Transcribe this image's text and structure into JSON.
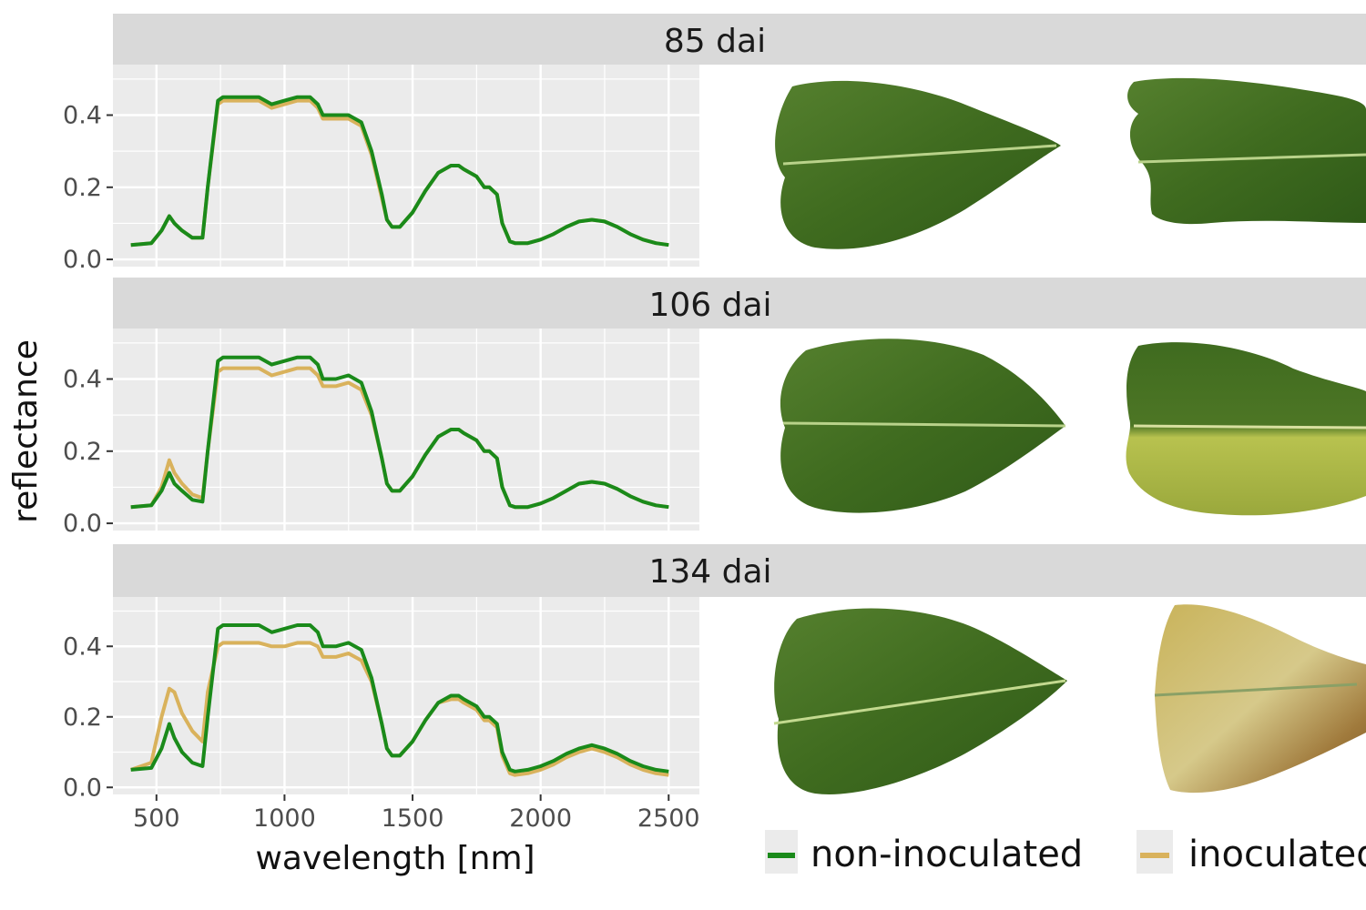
{
  "ylabel": "reflectance",
  "xlabel": "wavelength [nm]",
  "colors": {
    "non_inoculated": "#1a8a1a",
    "inoculated": "#d9b25c",
    "panel_bg": "#ebebeb",
    "strip_bg": "#d9d9d9",
    "grid": "#ffffff"
  },
  "legend": [
    {
      "label": "non-inoculated",
      "color": "#1a8a1a"
    },
    {
      "label": "inoculated",
      "color": "#d9b25c"
    }
  ],
  "panels": [
    {
      "strip": "85 dai",
      "leaves": [
        "healthy green leaf",
        "slightly wilted green leaf"
      ]
    },
    {
      "strip": "106 dai",
      "leaves": [
        "healthy green leaf",
        "leaf with yellowing lower half"
      ]
    },
    {
      "strip": "134 dai",
      "leaves": [
        "healthy green leaf",
        "yellow-brown necrotic leaf"
      ]
    }
  ],
  "chart_data": [
    {
      "type": "line",
      "title": "85 dai",
      "xlabel": "wavelength [nm]",
      "ylabel": "reflectance",
      "xlim": [
        330,
        2620
      ],
      "ylim": [
        -0.02,
        0.54
      ],
      "xticks": [
        "500",
        "1000",
        "1500",
        "2000",
        "2500"
      ],
      "yticks": [
        "0.0",
        "0.2",
        "0.4"
      ],
      "grid": true,
      "legend_position": "bottom",
      "x": [
        400,
        480,
        520,
        550,
        570,
        600,
        640,
        680,
        700,
        740,
        760,
        800,
        900,
        950,
        1000,
        1050,
        1100,
        1130,
        1150,
        1200,
        1250,
        1300,
        1340,
        1380,
        1400,
        1420,
        1450,
        1500,
        1550,
        1600,
        1650,
        1680,
        1700,
        1750,
        1780,
        1800,
        1830,
        1850,
        1880,
        1900,
        1950,
        2000,
        2050,
        2100,
        2150,
        2200,
        2250,
        2300,
        2350,
        2400,
        2450,
        2500
      ],
      "series": [
        {
          "name": "non-inoculated",
          "values": [
            0.04,
            0.045,
            0.08,
            0.12,
            0.1,
            0.08,
            0.06,
            0.06,
            0.2,
            0.44,
            0.45,
            0.45,
            0.45,
            0.43,
            0.44,
            0.45,
            0.45,
            0.43,
            0.4,
            0.4,
            0.4,
            0.38,
            0.3,
            0.18,
            0.11,
            0.09,
            0.09,
            0.13,
            0.19,
            0.24,
            0.26,
            0.26,
            0.25,
            0.23,
            0.2,
            0.2,
            0.18,
            0.1,
            0.05,
            0.045,
            0.045,
            0.055,
            0.07,
            0.09,
            0.105,
            0.11,
            0.105,
            0.09,
            0.07,
            0.055,
            0.045,
            0.04
          ]
        },
        {
          "name": "inoculated",
          "values": [
            0.04,
            0.045,
            0.08,
            0.12,
            0.1,
            0.08,
            0.06,
            0.06,
            0.2,
            0.43,
            0.44,
            0.44,
            0.44,
            0.42,
            0.43,
            0.44,
            0.44,
            0.42,
            0.39,
            0.39,
            0.39,
            0.37,
            0.29,
            0.17,
            0.11,
            0.09,
            0.09,
            0.13,
            0.19,
            0.24,
            0.26,
            0.26,
            0.25,
            0.23,
            0.2,
            0.2,
            0.18,
            0.1,
            0.05,
            0.045,
            0.045,
            0.055,
            0.07,
            0.09,
            0.105,
            0.11,
            0.105,
            0.09,
            0.07,
            0.055,
            0.045,
            0.04
          ]
        }
      ]
    },
    {
      "type": "line",
      "title": "106 dai",
      "xlabel": "wavelength [nm]",
      "ylabel": "reflectance",
      "xlim": [
        330,
        2620
      ],
      "ylim": [
        -0.02,
        0.54
      ],
      "xticks": [
        "500",
        "1000",
        "1500",
        "2000",
        "2500"
      ],
      "yticks": [
        "0.0",
        "0.2",
        "0.4"
      ],
      "grid": true,
      "legend_position": "bottom",
      "x": [
        400,
        480,
        520,
        550,
        570,
        600,
        640,
        680,
        700,
        740,
        760,
        800,
        900,
        950,
        1000,
        1050,
        1100,
        1130,
        1150,
        1200,
        1250,
        1300,
        1340,
        1380,
        1400,
        1420,
        1450,
        1500,
        1550,
        1600,
        1650,
        1680,
        1700,
        1750,
        1780,
        1800,
        1830,
        1850,
        1880,
        1900,
        1950,
        2000,
        2050,
        2100,
        2150,
        2200,
        2250,
        2300,
        2350,
        2400,
        2450,
        2500
      ],
      "series": [
        {
          "name": "non-inoculated",
          "values": [
            0.045,
            0.05,
            0.09,
            0.14,
            0.11,
            0.09,
            0.065,
            0.06,
            0.2,
            0.45,
            0.46,
            0.46,
            0.46,
            0.44,
            0.45,
            0.46,
            0.46,
            0.44,
            0.4,
            0.4,
            0.41,
            0.39,
            0.31,
            0.18,
            0.11,
            0.09,
            0.09,
            0.13,
            0.19,
            0.24,
            0.26,
            0.26,
            0.25,
            0.23,
            0.2,
            0.2,
            0.18,
            0.1,
            0.05,
            0.045,
            0.045,
            0.055,
            0.07,
            0.09,
            0.11,
            0.115,
            0.11,
            0.095,
            0.075,
            0.06,
            0.05,
            0.045
          ]
        },
        {
          "name": "inoculated",
          "values": [
            0.045,
            0.05,
            0.1,
            0.175,
            0.14,
            0.11,
            0.08,
            0.07,
            0.2,
            0.42,
            0.43,
            0.43,
            0.43,
            0.41,
            0.42,
            0.43,
            0.43,
            0.41,
            0.38,
            0.38,
            0.39,
            0.37,
            0.3,
            0.18,
            0.11,
            0.09,
            0.09,
            0.13,
            0.19,
            0.24,
            0.26,
            0.26,
            0.25,
            0.23,
            0.2,
            0.2,
            0.18,
            0.1,
            0.05,
            0.045,
            0.045,
            0.055,
            0.07,
            0.09,
            0.11,
            0.115,
            0.11,
            0.095,
            0.075,
            0.06,
            0.05,
            0.045
          ]
        }
      ]
    },
    {
      "type": "line",
      "title": "134 dai",
      "xlabel": "wavelength [nm]",
      "ylabel": "reflectance",
      "xlim": [
        330,
        2620
      ],
      "ylim": [
        -0.02,
        0.54
      ],
      "xticks": [
        "500",
        "1000",
        "1500",
        "2000",
        "2500"
      ],
      "yticks": [
        "0.0",
        "0.2",
        "0.4"
      ],
      "grid": true,
      "legend_position": "bottom",
      "x": [
        400,
        480,
        520,
        550,
        570,
        600,
        640,
        680,
        700,
        740,
        760,
        800,
        900,
        950,
        1000,
        1050,
        1100,
        1130,
        1150,
        1200,
        1250,
        1300,
        1340,
        1380,
        1400,
        1420,
        1450,
        1500,
        1550,
        1600,
        1650,
        1680,
        1700,
        1750,
        1780,
        1800,
        1830,
        1850,
        1880,
        1900,
        1950,
        2000,
        2050,
        2100,
        2150,
        2200,
        2250,
        2300,
        2350,
        2400,
        2450,
        2500
      ],
      "series": [
        {
          "name": "non-inoculated",
          "values": [
            0.05,
            0.055,
            0.11,
            0.18,
            0.14,
            0.1,
            0.07,
            0.06,
            0.2,
            0.45,
            0.46,
            0.46,
            0.46,
            0.44,
            0.45,
            0.46,
            0.46,
            0.44,
            0.4,
            0.4,
            0.41,
            0.39,
            0.31,
            0.18,
            0.11,
            0.09,
            0.09,
            0.13,
            0.19,
            0.24,
            0.26,
            0.26,
            0.25,
            0.23,
            0.2,
            0.2,
            0.18,
            0.1,
            0.05,
            0.045,
            0.05,
            0.06,
            0.075,
            0.095,
            0.11,
            0.12,
            0.11,
            0.095,
            0.075,
            0.06,
            0.05,
            0.045
          ]
        },
        {
          "name": "inoculated",
          "values": [
            0.05,
            0.07,
            0.2,
            0.28,
            0.27,
            0.21,
            0.16,
            0.13,
            0.27,
            0.4,
            0.41,
            0.41,
            0.41,
            0.4,
            0.4,
            0.41,
            0.41,
            0.4,
            0.37,
            0.37,
            0.38,
            0.36,
            0.3,
            0.18,
            0.11,
            0.09,
            0.09,
            0.13,
            0.19,
            0.24,
            0.25,
            0.25,
            0.24,
            0.22,
            0.19,
            0.19,
            0.17,
            0.09,
            0.04,
            0.035,
            0.04,
            0.05,
            0.065,
            0.085,
            0.1,
            0.11,
            0.1,
            0.085,
            0.065,
            0.05,
            0.04,
            0.035
          ]
        }
      ]
    }
  ]
}
